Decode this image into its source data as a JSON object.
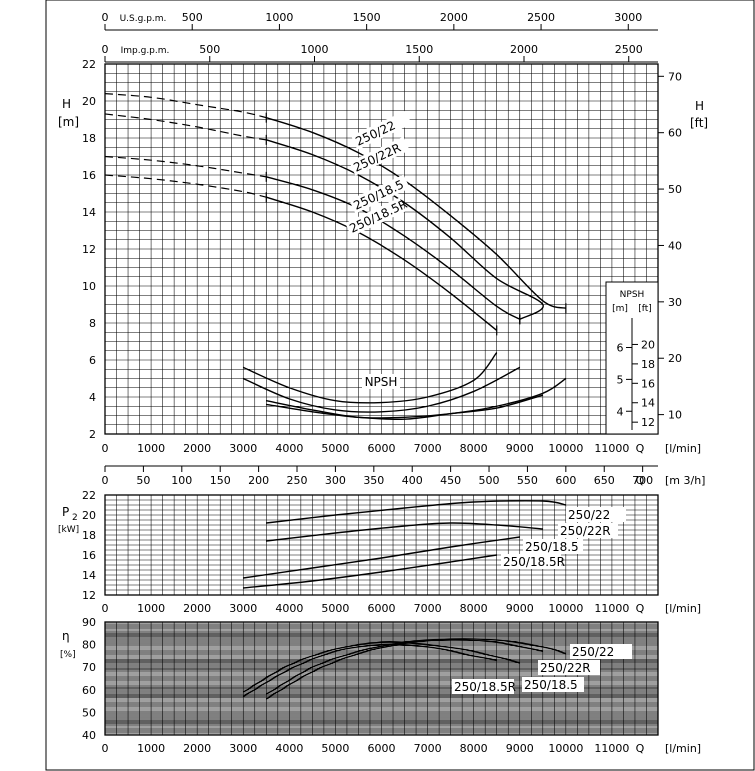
{
  "chart_data": [
    {
      "id": "head",
      "type": "line",
      "ylabel": "H",
      "ylabel_unit": "[m]",
      "y2label": "H",
      "y2label_unit": "[ft]",
      "xlabel": "Q",
      "xlabel_unit": "[l/min]",
      "xlim": [
        0,
        12000
      ],
      "ylim": [
        2,
        22
      ],
      "y2ticks": [
        10,
        20,
        30,
        40,
        50,
        60,
        70
      ],
      "x_ticks": [
        0,
        1000,
        2000,
        3000,
        4000,
        5000,
        6000,
        7000,
        8000,
        9000,
        10000,
        11000
      ],
      "y_ticks": [
        2,
        4,
        6,
        8,
        10,
        12,
        14,
        16,
        18,
        20,
        22
      ],
      "top_axes": [
        {
          "label": "U.S.g.p.m.",
          "ticks": [
            0,
            500,
            1000,
            1500,
            2000,
            2500,
            3000
          ]
        },
        {
          "label": "Imp.g.p.m.",
          "ticks": [
            0,
            500,
            1000,
            1500,
            2000,
            2500
          ]
        }
      ],
      "series": [
        {
          "name": "250/22",
          "dashed": [
            [
              0,
              20.4
            ],
            [
              1000,
              20.2
            ],
            [
              2000,
              19.8
            ],
            [
              3000,
              19.4
            ],
            [
              3500,
              19.1
            ]
          ],
          "points": [
            [
              3500,
              19.1
            ],
            [
              4500,
              18.3
            ],
            [
              5500,
              17.2
            ],
            [
              6500,
              15.7
            ],
            [
              7500,
              13.8
            ],
            [
              8500,
              11.7
            ],
            [
              9500,
              9.2
            ],
            [
              10000,
              8.8
            ]
          ]
        },
        {
          "name": "250/22R",
          "dashed": [
            [
              0,
              19.3
            ],
            [
              1000,
              19.0
            ],
            [
              2000,
              18.6
            ],
            [
              3000,
              18.1
            ],
            [
              3500,
              17.9
            ]
          ],
          "points": [
            [
              3500,
              17.9
            ],
            [
              4500,
              17.1
            ],
            [
              5500,
              16.0
            ],
            [
              6500,
              14.5
            ],
            [
              7500,
              12.6
            ],
            [
              8500,
              10.4
            ],
            [
              9500,
              9.0
            ],
            [
              9000,
              8.2
            ]
          ]
        },
        {
          "name": "250/18.5",
          "dashed": [
            [
              0,
              17.0
            ],
            [
              1000,
              16.8
            ],
            [
              2000,
              16.5
            ],
            [
              3000,
              16.1
            ],
            [
              3500,
              15.9
            ]
          ],
          "points": [
            [
              3500,
              15.9
            ],
            [
              4500,
              15.2
            ],
            [
              5500,
              14.2
            ],
            [
              6500,
              12.7
            ],
            [
              7500,
              10.9
            ],
            [
              8500,
              8.9
            ],
            [
              9000,
              8.2
            ]
          ]
        },
        {
          "name": "250/18.5R",
          "dashed": [
            [
              0,
              16.0
            ],
            [
              1000,
              15.8
            ],
            [
              2000,
              15.5
            ],
            [
              3000,
              15.1
            ],
            [
              3500,
              14.8
            ]
          ],
          "points": [
            [
              3500,
              14.8
            ],
            [
              4500,
              14.0
            ],
            [
              5500,
              12.9
            ],
            [
              6500,
              11.4
            ],
            [
              7500,
              9.6
            ],
            [
              8500,
              7.6
            ]
          ]
        }
      ]
    },
    {
      "id": "npsh",
      "type": "line",
      "label": "NPSH",
      "inset_title": "NPSH",
      "inset_units": [
        "[m]",
        "[ft]"
      ],
      "inset_m_ticks": [
        4,
        5,
        6
      ],
      "inset_ft_ticks": [
        12,
        14,
        16,
        18,
        20
      ],
      "series": [
        {
          "points": [
            [
              3000,
              5.6
            ],
            [
              4000,
              4.5
            ],
            [
              5000,
              3.8
            ],
            [
              6000,
              3.7
            ],
            [
              7000,
              4.0
            ],
            [
              8000,
              4.9
            ],
            [
              8500,
              6.4
            ]
          ]
        },
        {
          "points": [
            [
              3000,
              5.0
            ],
            [
              4000,
              3.9
            ],
            [
              5000,
              3.3
            ],
            [
              6000,
              3.2
            ],
            [
              7000,
              3.5
            ],
            [
              8000,
              4.3
            ],
            [
              9000,
              5.6
            ]
          ]
        },
        {
          "points": [
            [
              3500,
              3.8
            ],
            [
              4500,
              3.3
            ],
            [
              5500,
              2.9
            ],
            [
              6500,
              2.9
            ],
            [
              7500,
              3.1
            ],
            [
              8500,
              3.5
            ],
            [
              9500,
              4.2
            ],
            [
              10000,
              5.0
            ]
          ]
        },
        {
          "points": [
            [
              3500,
              3.6
            ],
            [
              4500,
              3.2
            ],
            [
              5500,
              2.9
            ],
            [
              6500,
              2.8
            ],
            [
              7500,
              3.1
            ],
            [
              8500,
              3.4
            ],
            [
              9500,
              4.1
            ]
          ]
        }
      ]
    },
    {
      "id": "power",
      "type": "line",
      "ylabel": "P",
      "ylabel_sub": "2",
      "ylabel_unit": "[kW]",
      "xlabel": "Q",
      "xlabel_unit": "[l/min]",
      "xlim": [
        0,
        12000
      ],
      "ylim": [
        12,
        22
      ],
      "m3h_axis": {
        "label": "Q",
        "unit": "[m 3/h]",
        "ticks": [
          0,
          50,
          100,
          150,
          200,
          250,
          300,
          350,
          400,
          450,
          500,
          550,
          600,
          650,
          700
        ]
      },
      "series": [
        {
          "name": "250/22",
          "points": [
            [
              3500,
              19.2
            ],
            [
              5000,
              20.0
            ],
            [
              6500,
              20.7
            ],
            [
              8000,
              21.3
            ],
            [
              9500,
              21.4
            ],
            [
              10000,
              21.0
            ]
          ]
        },
        {
          "name": "250/22R",
          "points": [
            [
              3500,
              17.4
            ],
            [
              5000,
              18.2
            ],
            [
              6500,
              18.9
            ],
            [
              7500,
              19.2
            ],
            [
              8500,
              19.0
            ],
            [
              9500,
              18.6
            ]
          ]
        },
        {
          "name": "250/18.5",
          "points": [
            [
              3000,
              13.7
            ],
            [
              4500,
              14.7
            ],
            [
              6000,
              15.7
            ],
            [
              7500,
              16.8
            ],
            [
              9000,
              17.8
            ]
          ]
        },
        {
          "name": "250/18.5R",
          "points": [
            [
              3000,
              12.7
            ],
            [
              4500,
              13.4
            ],
            [
              6000,
              14.3
            ],
            [
              7500,
              15.3
            ],
            [
              8500,
              16.0
            ]
          ]
        }
      ],
      "y_ticks": [
        12,
        14,
        16,
        18,
        20,
        22
      ]
    },
    {
      "id": "efficiency",
      "type": "line",
      "ylabel": "η",
      "ylabel_unit": "[%]",
      "xlabel": "Q",
      "xlabel_unit": "[l/min]",
      "xlim": [
        0,
        12000
      ],
      "ylim": [
        40,
        90
      ],
      "y_ticks": [
        40,
        50,
        60,
        70,
        80,
        90
      ],
      "series": [
        {
          "name": "250/22",
          "points": [
            [
              3500,
              58
            ],
            [
              4500,
              70
            ],
            [
              5500,
              77
            ],
            [
              6500,
              81
            ],
            [
              7500,
              82.5
            ],
            [
              8500,
              82
            ],
            [
              9500,
              79
            ],
            [
              10000,
              76
            ]
          ]
        },
        {
          "name": "250/22R",
          "points": [
            [
              3500,
              56
            ],
            [
              4500,
              68
            ],
            [
              5500,
              76
            ],
            [
              6500,
              80.5
            ],
            [
              7500,
              82
            ],
            [
              8500,
              81
            ],
            [
              9500,
              77
            ]
          ]
        },
        {
          "name": "250/18.5",
          "points": [
            [
              3000,
              59
            ],
            [
              4000,
              71
            ],
            [
              5000,
              78
            ],
            [
              6000,
              81
            ],
            [
              7000,
              80
            ],
            [
              8000,
              77
            ],
            [
              9000,
              72
            ]
          ]
        },
        {
          "name": "250/18.5R",
          "points": [
            [
              3000,
              57
            ],
            [
              4000,
              69
            ],
            [
              5000,
              77
            ],
            [
              6000,
              80
            ],
            [
              7000,
              79
            ],
            [
              8000,
              75
            ],
            [
              8500,
              73
            ]
          ]
        }
      ]
    }
  ]
}
